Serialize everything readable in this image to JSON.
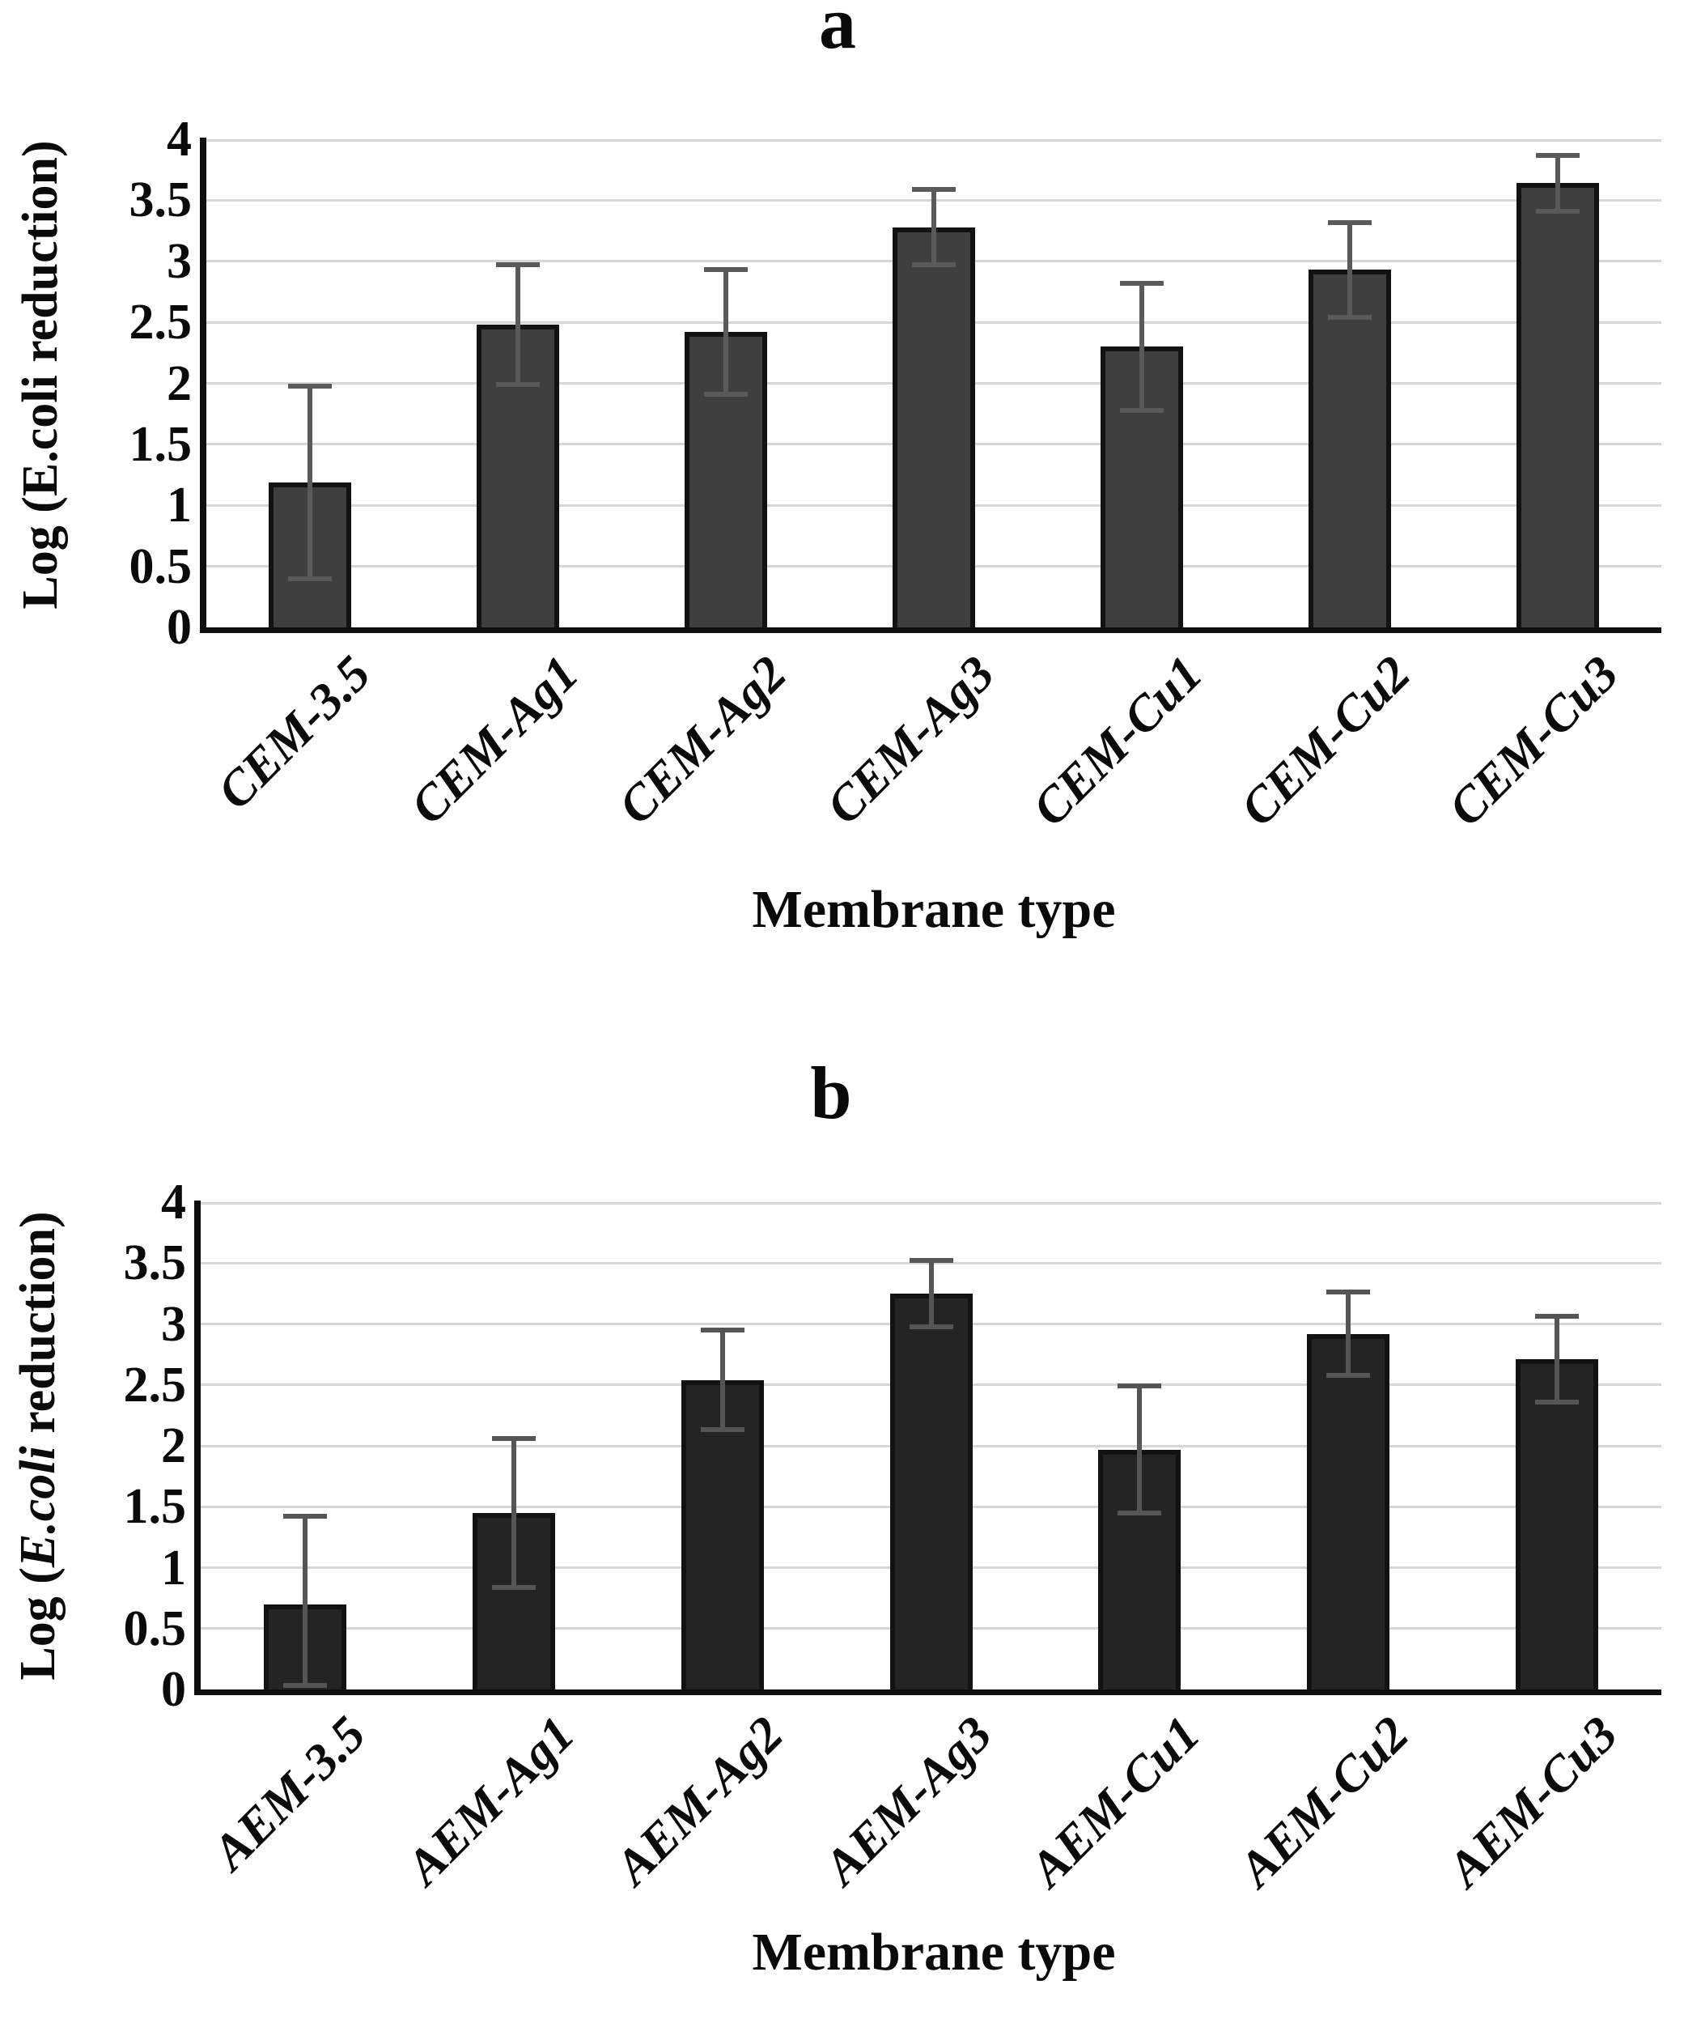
{
  "figure": {
    "background": "#ffffff",
    "axis_color": "#0f0f0f",
    "gridline_color": "#d6d6d6",
    "error_bar_color": "#5a5a5a"
  },
  "chart_data": [
    {
      "type": "bar",
      "title": "a",
      "xlabel": "Membrane type",
      "ylabel": "Log (E.coli reduction)",
      "ylabel_parts": {
        "prefix": "Log (E.coli reduction)",
        "emph": "",
        "suffix": ""
      },
      "categories": [
        "CEM-3.5",
        "CEM-Ag1",
        "CEM-Ag2",
        "CEM-Ag3",
        "CEM-Cu1",
        "CEM-Cu2",
        "CEM-Cu3"
      ],
      "values": [
        1.19,
        2.48,
        2.42,
        3.28,
        2.3,
        2.93,
        3.64
      ],
      "errors": [
        0.79,
        0.49,
        0.51,
        0.31,
        0.52,
        0.39,
        0.23
      ],
      "ylim": [
        0,
        4
      ],
      "ytick_step": 0.5,
      "grid": true,
      "legend": "none",
      "bar_color": "#3f3f3f",
      "bar_border_color": "#121212",
      "error_bar_color": "#5a5a5a"
    },
    {
      "type": "bar",
      "title": "b",
      "xlabel": "Membrane type",
      "ylabel": "Log (E.coli reduction)",
      "ylabel_parts": {
        "prefix": "Log (",
        "emph": "E.coli",
        "suffix": " reduction)"
      },
      "categories": [
        "AEM-3.5",
        "AEM-Ag1",
        "AEM-Ag2",
        "AEM-Ag3",
        "AEM-Cu1",
        "AEM-Cu2",
        "AEM-Cu3"
      ],
      "values": [
        0.7,
        1.45,
        2.54,
        3.25,
        1.97,
        2.92,
        2.71
      ],
      "errors": [
        0.72,
        0.61,
        0.41,
        0.27,
        0.52,
        0.34,
        0.35
      ],
      "ylim": [
        0,
        4
      ],
      "ytick_step": 0.5,
      "grid": true,
      "legend": "none",
      "bar_color": "#242424",
      "bar_border_color": "#121212",
      "error_bar_color": "#555555"
    }
  ]
}
